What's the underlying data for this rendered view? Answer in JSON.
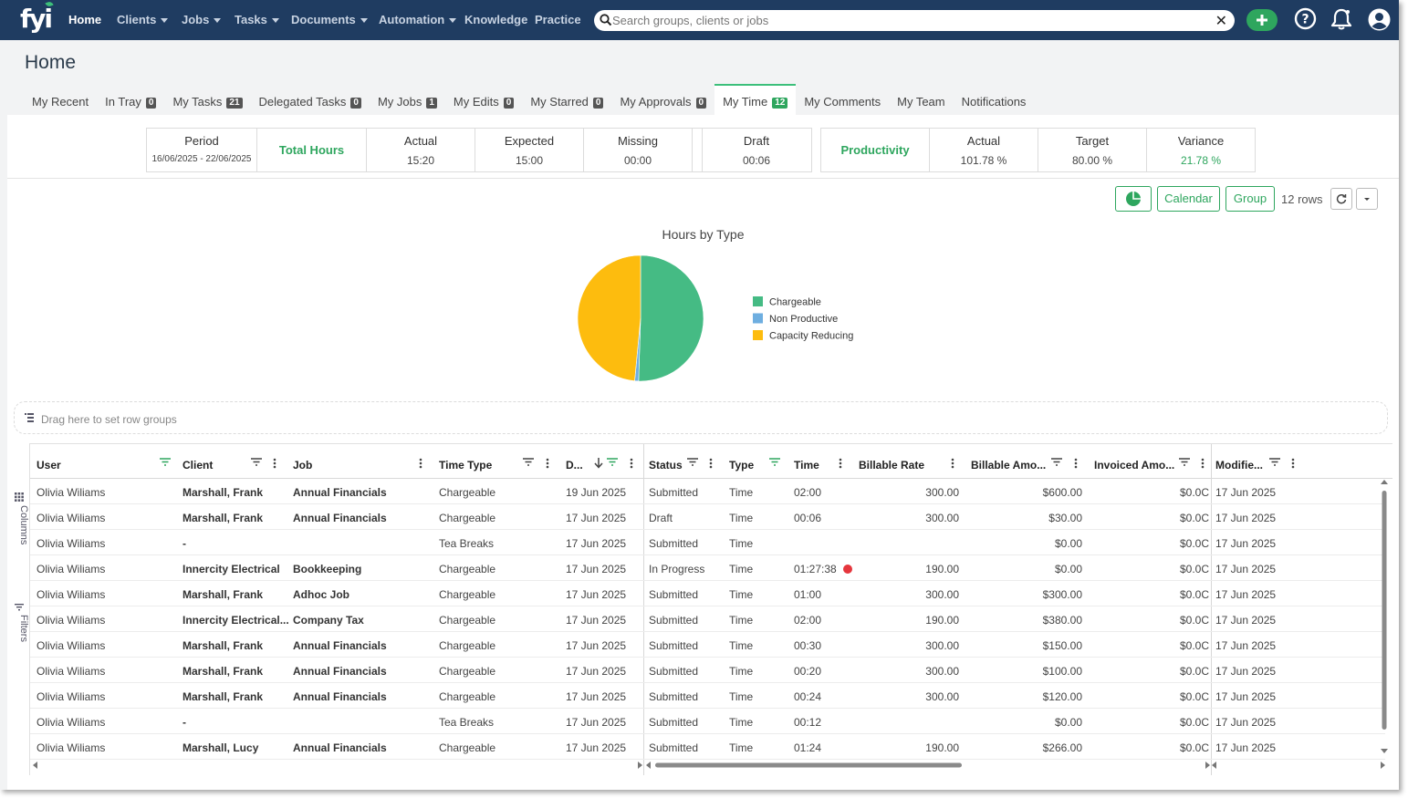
{
  "nav": {
    "logo": "fyi",
    "items": [
      {
        "label": "Home",
        "dropdown": false
      },
      {
        "label": "Clients",
        "dropdown": true
      },
      {
        "label": "Jobs",
        "dropdown": true
      },
      {
        "label": "Tasks",
        "dropdown": true
      },
      {
        "label": "Documents",
        "dropdown": true
      },
      {
        "label": "Automation",
        "dropdown": true
      },
      {
        "label": "Knowledge",
        "dropdown": false
      },
      {
        "label": "Practice",
        "dropdown": false
      }
    ],
    "search_placeholder": "Search groups, clients or jobs",
    "icons": [
      "add-icon",
      "help-icon",
      "notification-bell-icon",
      "user-profile-icon"
    ]
  },
  "page": {
    "title": "Home",
    "tabs": [
      {
        "label": "My Recent",
        "badge": null
      },
      {
        "label": "In Tray",
        "badge": "0"
      },
      {
        "label": "My Tasks",
        "badge": "21"
      },
      {
        "label": "Delegated Tasks",
        "badge": "0"
      },
      {
        "label": "My Jobs",
        "badge": "1"
      },
      {
        "label": "My Edits",
        "badge": "0"
      },
      {
        "label": "My Starred",
        "badge": "0"
      },
      {
        "label": "My Approvals",
        "badge": "0"
      },
      {
        "label": "My Time",
        "badge": "12",
        "active": true
      },
      {
        "label": "My Comments",
        "badge": null
      },
      {
        "label": "My Team",
        "badge": null
      },
      {
        "label": "Notifications",
        "badge": null
      }
    ]
  },
  "stats": {
    "period_label": "Period",
    "period_value": "16/06/2025 - 22/06/2025",
    "total_hours_label": "Total Hours",
    "actual_label": "Actual",
    "actual_value": "15:20",
    "expected_label": "Expected",
    "expected_value": "15:00",
    "missing_label": "Missing",
    "missing_value": "00:00",
    "draft_label": "Draft",
    "draft_value": "00:06",
    "productivity_label": "Productivity",
    "prod_actual_label": "Actual",
    "prod_actual_value": "101.78 %",
    "target_label": "Target",
    "target_value": "80.00 %",
    "variance_label": "Variance",
    "variance_value": "21.78 %"
  },
  "toolbar": {
    "calendar_label": "Calendar",
    "group_label": "Group",
    "rows_count": "12 rows"
  },
  "chart_data": {
    "type": "pie",
    "title": "Hours by Type",
    "slices": [
      {
        "label": "Chargeable",
        "value": 50.5,
        "color": "#45bb84"
      },
      {
        "label": "Non Productive",
        "value": 1.0,
        "color": "#6eaee0"
      },
      {
        "label": "Capacity Reducing",
        "value": 48.5,
        "color": "#fdbc0e"
      }
    ],
    "legend_position": "right"
  },
  "grid": {
    "group_placeholder": "Drag here to set row groups",
    "side_columns_label": "Columns",
    "side_filters_label": "Filters",
    "headers": {
      "user": "User",
      "client": "Client",
      "job": "Job",
      "time_type": "Time Type",
      "date": "D...",
      "status": "Status",
      "type": "Type",
      "time": "Time",
      "billable_rate": "Billable Rate",
      "billable_amount": "Billable Amo...",
      "invoiced_amount": "Invoiced Amo...",
      "modified": "Modifie..."
    },
    "rows": [
      {
        "user": "Olivia Wiliams",
        "client": "Marshall, Frank",
        "job": "Annual Financials",
        "time_type": "Chargeable",
        "date": "19 Jun 2025",
        "status": "Submitted",
        "type": "Time",
        "time": "02:00",
        "rate": "300.00",
        "billable": "$600.00",
        "invoiced": "$0.0C",
        "modified": "17 Jun 2025",
        "recording": false
      },
      {
        "user": "Olivia Wiliams",
        "client": "Marshall, Frank",
        "job": "Annual Financials",
        "time_type": "Chargeable",
        "date": "17 Jun 2025",
        "status": "Draft",
        "type": "Time",
        "time": "00:06",
        "rate": "300.00",
        "billable": "$30.00",
        "invoiced": "$0.0C",
        "modified": "17 Jun 2025",
        "recording": false
      },
      {
        "user": "Olivia Wiliams",
        "client": "-",
        "job": "",
        "time_type": "Tea Breaks",
        "date": "17 Jun 2025",
        "status": "Submitted",
        "type": "Time",
        "time": "",
        "rate": "",
        "billable": "$0.00",
        "invoiced": "$0.0C",
        "modified": "17 Jun 2025",
        "recording": false
      },
      {
        "user": "Olivia Wiliams",
        "client": "Innercity Electrical",
        "job": "Bookkeeping",
        "time_type": "Chargeable",
        "date": "17 Jun 2025",
        "status": "In Progress",
        "type": "Time",
        "time": "01:27:38",
        "rate": "190.00",
        "billable": "$0.00",
        "invoiced": "$0.0C",
        "modified": "17 Jun 2025",
        "recording": true
      },
      {
        "user": "Olivia Wiliams",
        "client": "Marshall, Frank",
        "job": "Adhoc Job",
        "time_type": "Chargeable",
        "date": "17 Jun 2025",
        "status": "Submitted",
        "type": "Time",
        "time": "01:00",
        "rate": "300.00",
        "billable": "$300.00",
        "invoiced": "$0.0C",
        "modified": "17 Jun 2025",
        "recording": false
      },
      {
        "user": "Olivia Wiliams",
        "client": "Innercity Electrical...",
        "job": "Company Tax",
        "time_type": "Chargeable",
        "date": "17 Jun 2025",
        "status": "Submitted",
        "type": "Time",
        "time": "02:00",
        "rate": "190.00",
        "billable": "$380.00",
        "invoiced": "$0.0C",
        "modified": "17 Jun 2025",
        "recording": false
      },
      {
        "user": "Olivia Wiliams",
        "client": "Marshall, Frank",
        "job": "Annual Financials",
        "time_type": "Chargeable",
        "date": "17 Jun 2025",
        "status": "Submitted",
        "type": "Time",
        "time": "00:30",
        "rate": "300.00",
        "billable": "$150.00",
        "invoiced": "$0.0C",
        "modified": "17 Jun 2025",
        "recording": false
      },
      {
        "user": "Olivia Wiliams",
        "client": "Marshall, Frank",
        "job": "Annual Financials",
        "time_type": "Chargeable",
        "date": "17 Jun 2025",
        "status": "Submitted",
        "type": "Time",
        "time": "00:20",
        "rate": "300.00",
        "billable": "$100.00",
        "invoiced": "$0.0C",
        "modified": "17 Jun 2025",
        "recording": false
      },
      {
        "user": "Olivia Wiliams",
        "client": "Marshall, Frank",
        "job": "Annual Financials",
        "time_type": "Chargeable",
        "date": "17 Jun 2025",
        "status": "Submitted",
        "type": "Time",
        "time": "00:24",
        "rate": "300.00",
        "billable": "$120.00",
        "invoiced": "$0.0C",
        "modified": "17 Jun 2025",
        "recording": false
      },
      {
        "user": "Olivia Wiliams",
        "client": "-",
        "job": "",
        "time_type": "Tea Breaks",
        "date": "17 Jun 2025",
        "status": "Submitted",
        "type": "Time",
        "time": "00:12",
        "rate": "",
        "billable": "$0.00",
        "invoiced": "$0.0C",
        "modified": "17 Jun 2025",
        "recording": false
      },
      {
        "user": "Olivia Wiliams",
        "client": "Marshall, Lucy",
        "job": "Annual Financials",
        "time_type": "Chargeable",
        "date": "17 Jun 2025",
        "status": "Submitted",
        "type": "Time",
        "time": "01:24",
        "rate": "190.00",
        "billable": "$266.00",
        "invoiced": "$0.0C",
        "modified": "17 Jun 2025",
        "recording": false
      }
    ]
  },
  "colors": {
    "nav_bg": "#1f3c61",
    "accent_green": "#2ea65e",
    "recording_red": "#e5363d"
  }
}
